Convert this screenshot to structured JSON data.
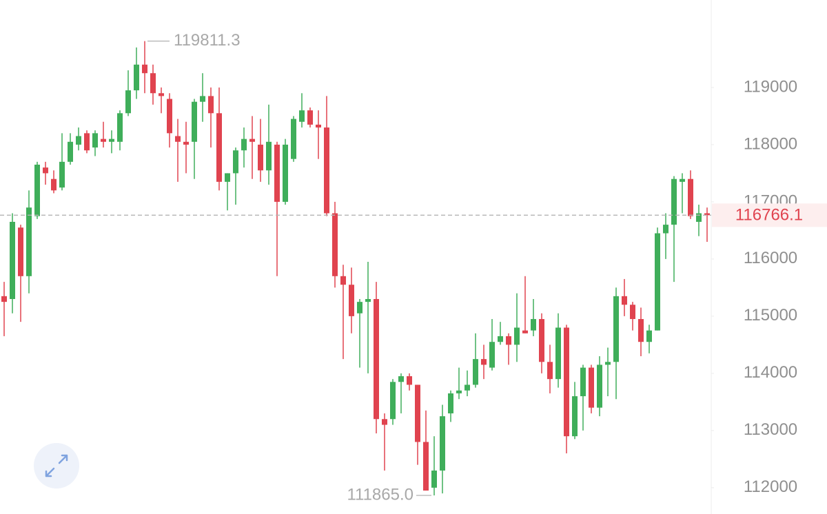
{
  "chart_data": {
    "type": "candlestick",
    "up_color": "#3fae5a",
    "down_color": "#e0434f",
    "ylim": [
      111540,
      120530
    ],
    "yticks": [
      112000,
      113000,
      114000,
      115000,
      116000,
      117000,
      118000,
      119000
    ],
    "open": [
      115350,
      115300,
      116550,
      115700,
      116750,
      117600,
      117400,
      117250,
      117700,
      118000,
      118200,
      117950,
      118100,
      118050,
      118050,
      118550,
      118950,
      119400,
      119250,
      118900,
      118800,
      118150,
      118050,
      118050,
      118750,
      118850,
      118550,
      117350,
      117500,
      117900,
      118100,
      118000,
      117550,
      118000,
      117000,
      117750,
      118400,
      118600,
      118350,
      118300,
      116800,
      115700,
      115550,
      115050,
      115250,
      115300,
      113200,
      113200,
      113850,
      113950,
      113800,
      112800,
      112000,
      112300,
      113300,
      113650,
      113700,
      113800,
      114250,
      114100,
      114550,
      114650,
      114500,
      114750,
      114750,
      114950,
      114200,
      113900,
      114800,
      112900,
      113600,
      114100,
      113400,
      114150,
      114200,
      115350,
      115200,
      114950,
      114550,
      114750,
      116450,
      116600,
      117350,
      117400,
      116650,
      116800
    ],
    "high": [
      115600,
      116800,
      116600,
      117200,
      117700,
      117700,
      117550,
      118200,
      118200,
      118300,
      118250,
      118250,
      118400,
      118250,
      118600,
      119300,
      119700,
      119811.3,
      119400,
      119000,
      118900,
      118450,
      118400,
      118800,
      119250,
      119000,
      119000,
      117500,
      117950,
      118300,
      118500,
      118450,
      118700,
      118050,
      118100,
      118500,
      118900,
      118650,
      118600,
      118850,
      117000,
      115900,
      115850,
      115300,
      115950,
      115600,
      113300,
      113900,
      114000,
      114000,
      113800,
      113350,
      112900,
      113450,
      113700,
      114100,
      114050,
      114700,
      114500,
      114950,
      114900,
      114700,
      115400,
      115700,
      115300,
      115050,
      114500,
      115050,
      114850,
      113850,
      114150,
      114150,
      114300,
      114450,
      115500,
      115650,
      115250,
      115150,
      114850,
      116550,
      116800,
      117450,
      117500,
      117550,
      116950,
      116900
    ],
    "low": [
      114650,
      115050,
      114900,
      115400,
      116700,
      117300,
      117150,
      117200,
      117650,
      117900,
      117850,
      117800,
      117950,
      117850,
      117900,
      118500,
      118800,
      118900,
      118700,
      118550,
      117950,
      117350,
      117500,
      117400,
      118400,
      117950,
      117200,
      116850,
      116950,
      117600,
      117400,
      117350,
      117300,
      115700,
      116950,
      117700,
      118300,
      118300,
      117750,
      116750,
      115500,
      114250,
      114700,
      114100,
      114000,
      112950,
      112300,
      113100,
      113300,
      113700,
      112400,
      111950,
      111865,
      111900,
      113150,
      113550,
      113600,
      113750,
      113900,
      114050,
      114500,
      114150,
      114200,
      114700,
      114650,
      114000,
      113650,
      113750,
      112600,
      112850,
      113000,
      113300,
      113250,
      113600,
      113550,
      115000,
      114750,
      114300,
      114350,
      114750,
      116000,
      115600,
      116800,
      116700,
      116400,
      116300
    ],
    "close": [
      115250,
      116650,
      115700,
      116900,
      117650,
      117500,
      117200,
      117700,
      118050,
      118150,
      117900,
      118200,
      118050,
      118100,
      118550,
      118950,
      119400,
      119250,
      118900,
      118850,
      118200,
      118050,
      118000,
      118750,
      118850,
      118550,
      117350,
      117500,
      117900,
      118100,
      118050,
      117550,
      118050,
      117000,
      118000,
      118450,
      118600,
      118350,
      118300,
      116800,
      115700,
      115550,
      115000,
      115250,
      115300,
      113200,
      113100,
      113850,
      113950,
      113800,
      112800,
      111950,
      112300,
      113250,
      113650,
      113700,
      113800,
      114250,
      114150,
      114550,
      114650,
      114500,
      114800,
      114700,
      114950,
      114200,
      113900,
      114800,
      112900,
      113600,
      114100,
      113400,
      114150,
      114200,
      115350,
      115200,
      114950,
      114550,
      114750,
      116450,
      116600,
      117400,
      117400,
      116750,
      116800,
      116766.1
    ],
    "high_marker": 119811.3,
    "low_marker": {
      "value": 111865,
      "label": "111865.0"
    },
    "last_price": 116766.1
  }
}
